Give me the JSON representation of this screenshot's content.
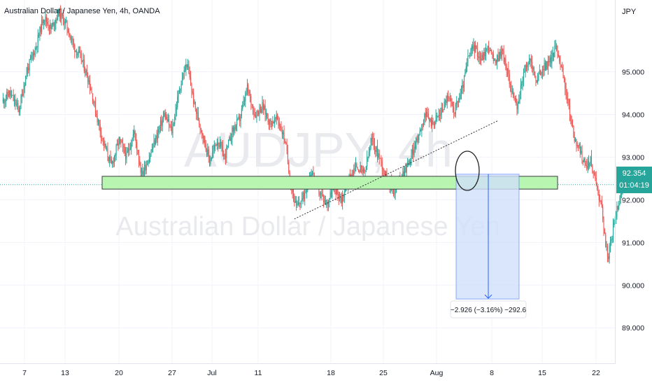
{
  "header": {
    "title": "Australian Dollar / Japanese Yen, 4h, OANDA"
  },
  "watermark": {
    "symbol": "AUDJPY, 4h",
    "name": "Australian Dollar / Japanese Yen"
  },
  "price_axis": {
    "currency": "JPY"
  },
  "last_price": {
    "value": "92.354",
    "countdown": "01:04:19"
  },
  "measure": {
    "label": "−2.926 (−3.16%) −292.6"
  },
  "colors": {
    "up": "#26a69a",
    "down": "#ef5350",
    "zone_fill": "#b8f5b0",
    "measure_fill": "#cfe0fb",
    "measure_line": "#2962ff"
  },
  "chart_data": {
    "type": "candlestick",
    "title": "Australian Dollar / Japanese Yen, 4h, OANDA",
    "ylim": [
      88.2,
      96.6
    ],
    "y_ticks": [
      89.0,
      90.0,
      91.0,
      92.0,
      93.0,
      94.0,
      95.0
    ],
    "x_ticks": [
      "7",
      "13",
      "20",
      "27",
      "Jul",
      "11",
      "18",
      "25",
      "Aug",
      "8",
      "15",
      "22"
    ],
    "price_path": [
      [
        0,
        94.3
      ],
      [
        8,
        94.5
      ],
      [
        18,
        94.1
      ],
      [
        26,
        95.0
      ],
      [
        36,
        95.6
      ],
      [
        44,
        96.3
      ],
      [
        52,
        96.0
      ],
      [
        60,
        96.4
      ],
      [
        68,
        96.1
      ],
      [
        76,
        95.6
      ],
      [
        84,
        95.3
      ],
      [
        92,
        94.8
      ],
      [
        100,
        94.0
      ],
      [
        108,
        93.3
      ],
      [
        116,
        92.8
      ],
      [
        124,
        93.4
      ],
      [
        132,
        93.0
      ],
      [
        140,
        93.6
      ],
      [
        148,
        92.6
      ],
      [
        156,
        93.0
      ],
      [
        164,
        93.5
      ],
      [
        172,
        94.0
      ],
      [
        180,
        93.6
      ],
      [
        188,
        94.6
      ],
      [
        196,
        95.2
      ],
      [
        204,
        94.2
      ],
      [
        212,
        93.6
      ],
      [
        220,
        92.9
      ],
      [
        228,
        93.4
      ],
      [
        236,
        93.0
      ],
      [
        244,
        93.6
      ],
      [
        252,
        93.9
      ],
      [
        260,
        94.6
      ],
      [
        268,
        94.0
      ],
      [
        276,
        94.2
      ],
      [
        284,
        93.8
      ],
      [
        292,
        93.9
      ],
      [
        300,
        93.4
      ],
      [
        306,
        92.4
      ],
      [
        312,
        91.8
      ],
      [
        320,
        92.1
      ],
      [
        328,
        92.7
      ],
      [
        336,
        92.2
      ],
      [
        344,
        91.9
      ],
      [
        352,
        92.3
      ],
      [
        360,
        92.0
      ],
      [
        368,
        92.5
      ],
      [
        376,
        92.8
      ],
      [
        384,
        92.6
      ],
      [
        392,
        93.4
      ],
      [
        400,
        93.0
      ],
      [
        408,
        92.5
      ],
      [
        416,
        92.2
      ],
      [
        424,
        92.6
      ],
      [
        432,
        92.9
      ],
      [
        440,
        93.4
      ],
      [
        448,
        94.0
      ],
      [
        456,
        93.8
      ],
      [
        464,
        94.0
      ],
      [
        472,
        94.4
      ],
      [
        480,
        94.1
      ],
      [
        488,
        94.6
      ],
      [
        494,
        95.3
      ],
      [
        500,
        95.6
      ],
      [
        508,
        95.3
      ],
      [
        516,
        95.6
      ],
      [
        522,
        95.2
      ],
      [
        530,
        95.5
      ],
      [
        538,
        94.8
      ],
      [
        546,
        94.1
      ],
      [
        552,
        94.9
      ],
      [
        560,
        95.3
      ],
      [
        566,
        94.8
      ],
      [
        574,
        95.1
      ],
      [
        580,
        95.2
      ],
      [
        588,
        95.6
      ],
      [
        594,
        95.0
      ],
      [
        600,
        94.3
      ],
      [
        606,
        93.5
      ],
      [
        612,
        93.2
      ],
      [
        618,
        92.8
      ],
      [
        624,
        92.9
      ],
      [
        630,
        92.4
      ],
      [
        636,
        91.8
      ],
      [
        642,
        90.6
      ],
      [
        648,
        91.3
      ],
      [
        654,
        92.0
      ],
      [
        658,
        92.354
      ]
    ],
    "support_zone": {
      "low": 92.25,
      "high": 92.55
    },
    "trendline": {
      "from": [
        310,
        91.55
      ],
      "to": [
        708,
        93.85
      ]
    },
    "measure": {
      "start": 92.6,
      "end": 89.674,
      "change": -2.926,
      "change_pct": -3.16,
      "ticks": -292.6
    },
    "last_price": 92.354
  }
}
